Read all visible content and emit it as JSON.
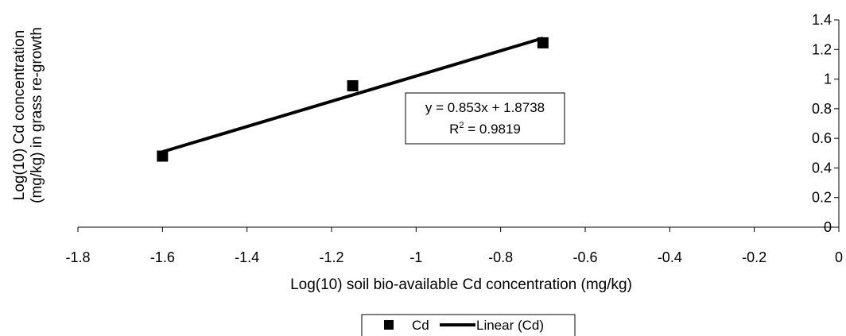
{
  "chart_data": {
    "type": "scatter",
    "xlabel": "Log(10) soil bio-available Cd concentration (mg/kg)",
    "ylabel_line1": "Log(10) Cd concentration",
    "ylabel_line2": "(mg/kg) in grass re-growth",
    "xlim": [
      -1.8,
      0
    ],
    "ylim": [
      0,
      1.4
    ],
    "x_ticks": [
      -1.8,
      -1.6,
      -1.4,
      -1.2,
      -1,
      -0.8,
      -0.6,
      -0.4,
      -0.2,
      0
    ],
    "x_tick_labels": [
      "-1.8",
      "-1.6",
      "-1.4",
      "-1.2",
      "-1",
      "-0.8",
      "-0.6",
      "-0.4",
      "-0.2",
      "0"
    ],
    "y_ticks": [
      0,
      0.2,
      0.4,
      0.6,
      0.8,
      1,
      1.2,
      1.4
    ],
    "y_tick_labels": [
      "0",
      "0.2",
      "0.4",
      "0.6",
      "0.8",
      "1",
      "1.2",
      "1.4"
    ],
    "grid": false,
    "series": [
      {
        "name": "Cd",
        "marker": "square",
        "color": "#000000",
        "points": [
          {
            "x": -1.6,
            "y": 0.48
          },
          {
            "x": -1.15,
            "y": 0.955
          },
          {
            "x": -0.7,
            "y": 1.245
          }
        ]
      }
    ],
    "trendline": {
      "name": "Linear (Cd)",
      "slope": 0.853,
      "intercept": 1.8738,
      "x_range": [
        -1.6,
        -0.7
      ],
      "color": "#000000",
      "equation_label": "y = 0.853x + 1.8738",
      "r2_prefix": "R",
      "r2_superscript": "2",
      "r2_suffix": " = 0.9819"
    },
    "legend": {
      "placement": "bottom-center",
      "items": [
        {
          "label": "Cd",
          "kind": "marker"
        },
        {
          "label": "Linear (Cd)",
          "kind": "line"
        }
      ]
    }
  }
}
